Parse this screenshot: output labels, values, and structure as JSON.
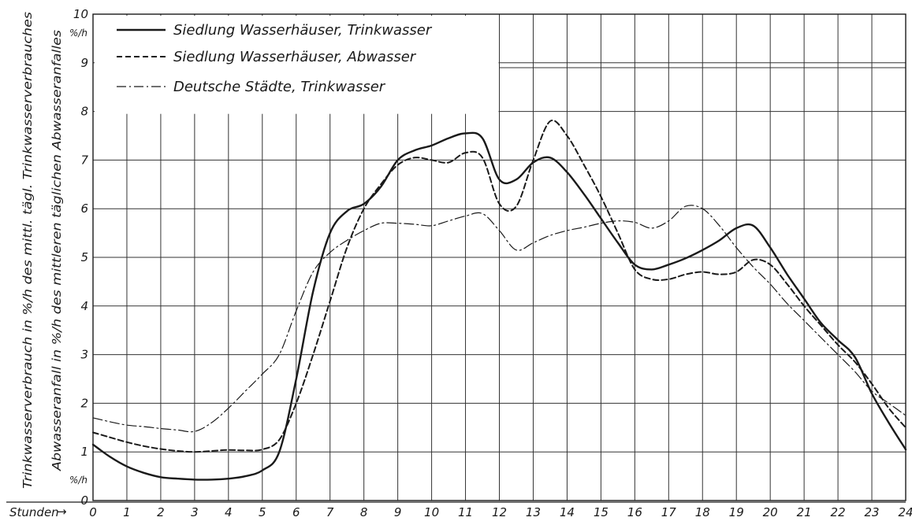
{
  "chart_data": {
    "type": "line",
    "title": "",
    "xlabel": "Stunden",
    "ylabel_lines": [
      "Trinkwasserverbrauch in %/h des mittl. tägl. Trinkwasserverbrauches",
      "Abwasseranfall in %/h des mittleren täglichen Abwasseranfalles"
    ],
    "y_unit": "%/h",
    "xlim": [
      0,
      24
    ],
    "ylim": [
      0,
      10
    ],
    "x_ticks": [
      "0",
      "1",
      "2",
      "3",
      "4",
      "5",
      "6",
      "7",
      "8",
      "9",
      "10",
      "11",
      "12",
      "13",
      "14",
      "15",
      "16",
      "17",
      "18",
      "19",
      "20",
      "21",
      "22",
      "23",
      "24"
    ],
    "y_ticks": [
      "0",
      "1",
      "2",
      "3",
      "4",
      "5",
      "6",
      "7",
      "8",
      "9",
      "10"
    ],
    "grid": true,
    "legend_position": "top-left",
    "colors": {
      "line": "#1a1a1a",
      "grid": "#333333"
    },
    "series": [
      {
        "name": "Siedlung Wasserhäuser, Trinkwasser",
        "style": "solid",
        "x": [
          0,
          0.5,
          1,
          1.5,
          2,
          2.5,
          3,
          3.5,
          4,
          4.5,
          5,
          5.5,
          6,
          6.5,
          7,
          7.5,
          8,
          8.5,
          9,
          9.5,
          10,
          10.5,
          11,
          11.5,
          12,
          12.5,
          13,
          13.5,
          14,
          14.5,
          15,
          15.5,
          16,
          16.5,
          17,
          17.5,
          18,
          18.5,
          19,
          19.5,
          20,
          20.5,
          21,
          21.5,
          22,
          22.5,
          23,
          23.5,
          24
        ],
        "y": [
          1.15,
          0.9,
          0.7,
          0.57,
          0.48,
          0.45,
          0.43,
          0.43,
          0.45,
          0.5,
          0.62,
          1.0,
          2.5,
          4.3,
          5.5,
          5.95,
          6.1,
          6.45,
          7.0,
          7.2,
          7.3,
          7.45,
          7.55,
          7.45,
          6.6,
          6.6,
          6.95,
          7.05,
          6.75,
          6.3,
          5.8,
          5.3,
          4.85,
          4.75,
          4.85,
          4.98,
          5.15,
          5.35,
          5.6,
          5.65,
          5.2,
          4.65,
          4.15,
          3.65,
          3.3,
          2.95,
          2.2,
          1.6,
          1.05
        ]
      },
      {
        "name": "Siedlung Wasserhäuser, Abwasser",
        "style": "dashed",
        "x": [
          0,
          0.5,
          1,
          1.5,
          2,
          2.5,
          3,
          3.5,
          4,
          4.5,
          5,
          5.5,
          6,
          6.5,
          7,
          7.5,
          8,
          8.5,
          9,
          9.5,
          10,
          10.5,
          11,
          11.5,
          12,
          12.5,
          13,
          13.5,
          14,
          14.5,
          15,
          15.5,
          16,
          16.5,
          17,
          17.5,
          18,
          18.5,
          19,
          19.5,
          20,
          20.5,
          21,
          21.5,
          22,
          22.5,
          23,
          23.5,
          24
        ],
        "y": [
          1.4,
          1.3,
          1.2,
          1.12,
          1.06,
          1.02,
          1.0,
          1.02,
          1.04,
          1.03,
          1.05,
          1.25,
          2.0,
          3.0,
          4.1,
          5.2,
          6.0,
          6.5,
          6.9,
          7.05,
          7.0,
          6.95,
          7.15,
          7.05,
          6.1,
          6.05,
          7.0,
          7.8,
          7.5,
          6.9,
          6.25,
          5.5,
          4.75,
          4.55,
          4.55,
          4.65,
          4.7,
          4.65,
          4.7,
          4.95,
          4.85,
          4.45,
          4.0,
          3.6,
          3.2,
          2.85,
          2.4,
          1.9,
          1.5
        ]
      },
      {
        "name": "Deutsche Städte, Trinkwasser",
        "style": "dashdot",
        "x": [
          0,
          0.5,
          1,
          1.5,
          2,
          2.5,
          3,
          3.5,
          4,
          4.5,
          5,
          5.5,
          6,
          6.5,
          7,
          7.5,
          8,
          8.5,
          9,
          9.5,
          10,
          10.5,
          11,
          11.5,
          12,
          12.5,
          13,
          13.5,
          14,
          14.5,
          15,
          15.5,
          16,
          16.5,
          17,
          17.5,
          18,
          18.5,
          19,
          19.5,
          20,
          20.5,
          21,
          21.5,
          22,
          22.5,
          23,
          23.5,
          24
        ],
        "y": [
          1.7,
          1.62,
          1.55,
          1.52,
          1.48,
          1.45,
          1.42,
          1.6,
          1.9,
          2.25,
          2.6,
          3.0,
          3.9,
          4.7,
          5.1,
          5.35,
          5.55,
          5.7,
          5.7,
          5.68,
          5.65,
          5.75,
          5.85,
          5.9,
          5.55,
          5.15,
          5.3,
          5.45,
          5.55,
          5.62,
          5.7,
          5.75,
          5.72,
          5.6,
          5.75,
          6.05,
          6.0,
          5.65,
          5.2,
          4.8,
          4.45,
          4.05,
          3.7,
          3.35,
          3.0,
          2.65,
          2.25,
          2.0,
          1.75
        ]
      }
    ]
  }
}
